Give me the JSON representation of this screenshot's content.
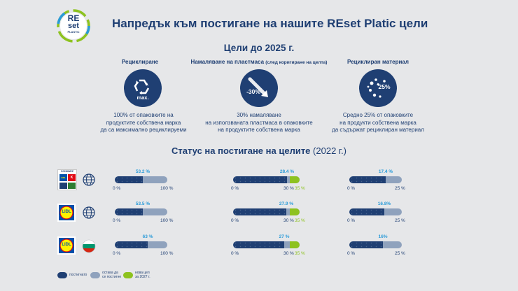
{
  "logo": {
    "line1": "RE",
    "line2": "set",
    "line3": "PLASTIC"
  },
  "header": {
    "title": "Напредък към постигане на нашите REset Platic цели"
  },
  "goals_section": {
    "title": "Цели до 2025 г.",
    "goals": [
      {
        "heading": "Рециклиране",
        "heading_note": "",
        "icon_text": "max.",
        "text": "100% от опаковките на\nпродуктите собствена марка\nда са максимално рециклируеми"
      },
      {
        "heading": "Намаляване на пластмаса",
        "heading_note": "(след коригиране на целта)",
        "icon_text": "-30%",
        "text": "30% намаляване\nна използваната пластмаса в опаковките\nна продуктите собствена марка"
      },
      {
        "heading": "Рециклиран материал",
        "heading_note": "",
        "icon_text": "25%",
        "text": "Средно 25% от опаковките\nна продукти собствена марка\nда съдържат рециклиран материал"
      }
    ]
  },
  "status_section": {
    "title": "Статус на постигане на целите",
    "year": "(2022 г.)"
  },
  "rows": [
    {
      "logos": [
        "SCHWARZ",
        "K",
        "LIDL"
      ],
      "region": "globe",
      "bars": [
        {
          "label": "53.2 %",
          "value": 53.2,
          "max": 100,
          "min_label": "0 %",
          "max_label": "100 %"
        },
        {
          "label": "28.4 %",
          "value": 28.4,
          "max": 35,
          "min_label": "0 %",
          "mid_label": "30 %",
          "max_label": "35 %",
          "green_from": 30
        },
        {
          "label": "17.4 %",
          "value": 17.4,
          "max": 25,
          "min_label": "0 %",
          "max_label": "25 %"
        }
      ]
    },
    {
      "logos": [
        "LIDL"
      ],
      "region": "globe",
      "bars": [
        {
          "label": "53.5 %",
          "value": 53.5,
          "max": 100,
          "min_label": "0 %",
          "max_label": "100 %"
        },
        {
          "label": "27.9 %",
          "value": 27.9,
          "max": 35,
          "min_label": "0 %",
          "mid_label": "30 %",
          "max_label": "35 %",
          "green_from": 30
        },
        {
          "label": "16.8%",
          "value": 16.8,
          "max": 25,
          "min_label": "0 %",
          "max_label": "25 %"
        }
      ]
    },
    {
      "logos": [
        "LIDL"
      ],
      "region": "bulgaria-flag",
      "bars": [
        {
          "label": "63 %",
          "value": 63,
          "max": 100,
          "min_label": "0 %",
          "max_label": "100 %"
        },
        {
          "label": "27 %",
          "value": 27,
          "max": 35,
          "min_label": "0 %",
          "mid_label": "30 %",
          "max_label": "35 %",
          "green_from": 30
        },
        {
          "label": "16%",
          "value": 16,
          "max": 25,
          "min_label": "0 %",
          "max_label": "25 %"
        }
      ]
    }
  ],
  "legend": {
    "items": [
      {
        "label": "постигнато",
        "color": "#1f3f73"
      },
      {
        "label": "остава да\nсе постигне",
        "color": "#8fa2bd"
      },
      {
        "label": "нова цел\nза 2027 г.",
        "color": "#8dc21f"
      }
    ]
  },
  "colors": {
    "navy": "#1f3f73",
    "grey_blue": "#8fa2bd",
    "green": "#8dc21f",
    "cyan": "#2a9bd8"
  }
}
